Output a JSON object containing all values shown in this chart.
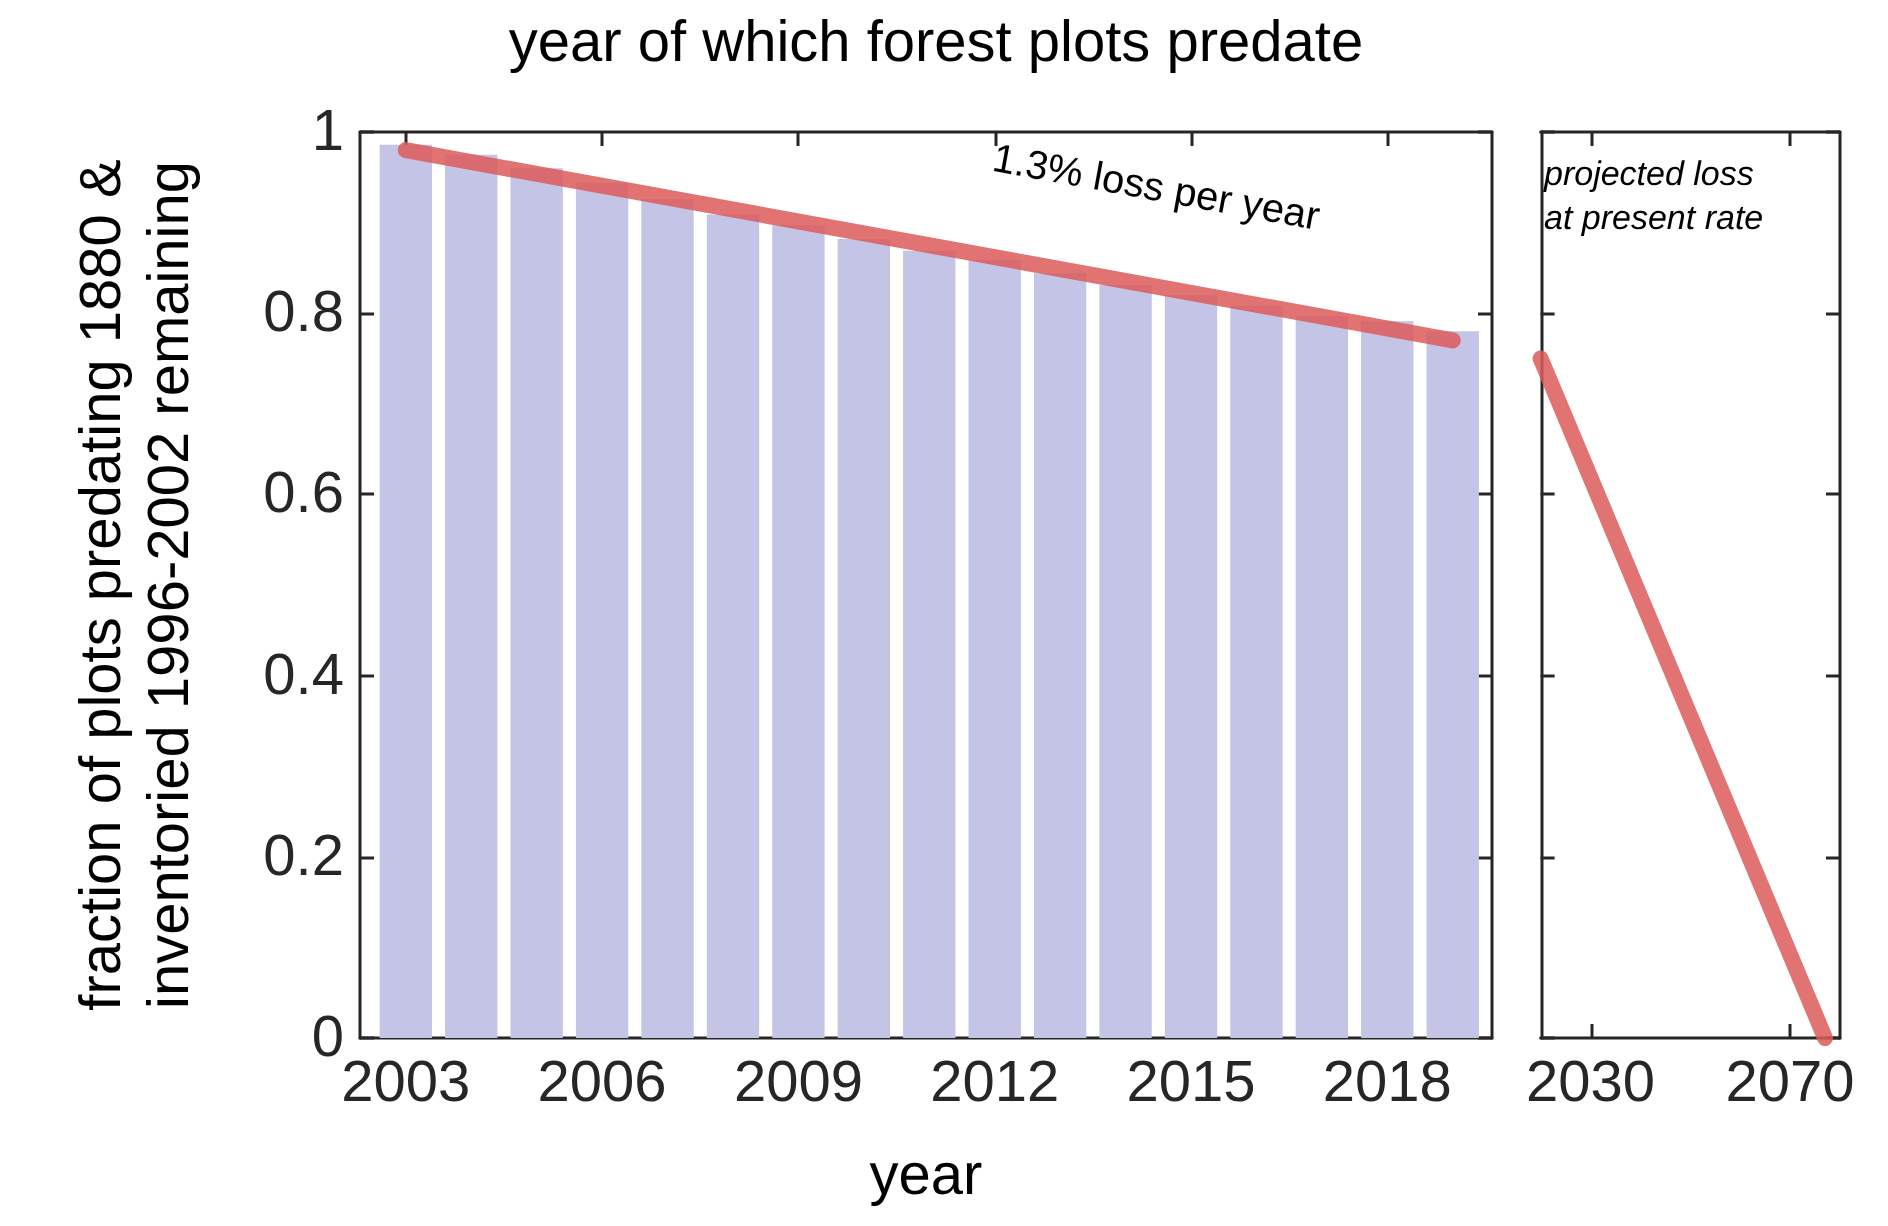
{
  "chart_data": [
    {
      "type": "bar",
      "title": "year of which forest plots predate",
      "xlabel": "year",
      "ylabel": "fraction of plots predating 1880 &\ninventoried 1996-2002 remaining",
      "x": [
        2003,
        2004,
        2005,
        2006,
        2007,
        2008,
        2009,
        2010,
        2011,
        2012,
        2013,
        2014,
        2015,
        2016,
        2017,
        2018,
        2019
      ],
      "series": [
        {
          "color": "#c3c4e6",
          "values": [
            0.986,
            0.975,
            0.96,
            0.944,
            0.926,
            0.909,
            0.897,
            0.882,
            0.869,
            0.859,
            0.844,
            0.831,
            0.82,
            0.808,
            0.797,
            0.791,
            0.78
          ]
        },
        {
          "type": "line",
          "color": "#dc5a5a",
          "x": [
            2003,
            2019
          ],
          "values": [
            0.98,
            0.77
          ]
        }
      ],
      "xlim": [
        2002.3,
        2019.6
      ],
      "xticks": [
        2003,
        2006,
        2009,
        2012,
        2015,
        2018
      ],
      "ylim": [
        0,
        1
      ],
      "yticks": [
        0,
        0.2,
        0.4,
        0.6,
        0.8,
        1
      ],
      "annotations": [
        "1.3% loss per year"
      ]
    },
    {
      "type": "line",
      "series": [
        {
          "color": "#dc5a5a",
          "x": [
            2020,
            2077
          ],
          "values": [
            0.75,
            0
          ]
        }
      ],
      "xlim": [
        2020,
        2080
      ],
      "xticks": [
        2030,
        2070
      ],
      "ylim": [
        0,
        1
      ],
      "yticks": [
        0,
        0.2,
        0.4,
        0.6,
        0.8,
        1
      ],
      "tick_labels": "x",
      "annotations": [
        "projected loss\nat present rate"
      ]
    }
  ]
}
